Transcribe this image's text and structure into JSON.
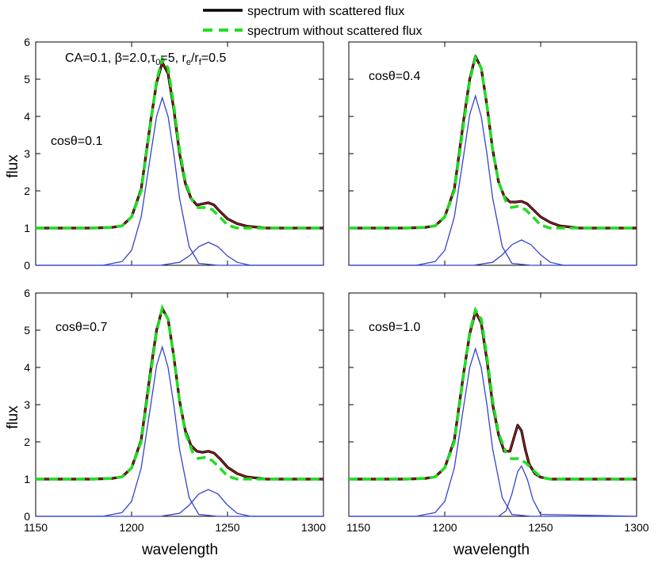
{
  "chart_data": {
    "type": "line",
    "legend": {
      "placement": "top",
      "entries": [
        {
          "label": "spectrum with scattered flux",
          "color": "#000000",
          "style": "solid"
        },
        {
          "label": "spectrum without scattered flux",
          "color": "#22dd22",
          "style": "dashed"
        }
      ]
    },
    "annotation_params": "CA=0.1, β=2.0,τ₀=5, rₑ/rᶠ=0.5",
    "annotation_parts": {
      "ca": "CA=0.1, ",
      "beta": "β=2.0,",
      "tau": "τ",
      "tau_sub": "0",
      "tau_val": "=5, r",
      "re_sub": "e",
      "rf_mid": "/r",
      "rf_sub": "f",
      "ratio": "=0.5"
    },
    "xlabel": "wavelength",
    "ylabel": "flux",
    "xlim": [
      1150,
      1300
    ],
    "ylim": [
      0,
      6
    ],
    "x_ticks": [
      1150,
      1200,
      1250,
      1300
    ],
    "y_ticks": [
      0,
      1,
      2,
      3,
      4,
      5,
      6
    ],
    "x_tick_labels": [
      "1150",
      "1200",
      "1250",
      "1300"
    ],
    "y_tick_labels": [
      "0",
      "1",
      "2",
      "3",
      "4",
      "5",
      "6"
    ],
    "colors": {
      "with_scattered": "#000000",
      "red_overlay": "#cc2222",
      "without_scattered": "#22dd22",
      "components": "#3344cc"
    },
    "panels": [
      {
        "label": "cosθ=0.1",
        "series": [
          {
            "name": "spectrum with scattered flux",
            "x": [
              1150,
              1180,
              1190,
              1195,
              1200,
              1205,
              1210,
              1213,
              1216,
              1219,
              1222,
              1225,
              1228,
              1231,
              1234,
              1237,
              1240,
              1243,
              1246,
              1250,
              1255,
              1260,
              1270,
              1300
            ],
            "y": [
              1.0,
              1.0,
              1.02,
              1.06,
              1.3,
              2.05,
              3.9,
              4.9,
              5.45,
              5.15,
              4.2,
              3.0,
              2.2,
              1.8,
              1.62,
              1.65,
              1.68,
              1.62,
              1.45,
              1.25,
              1.12,
              1.05,
              1.0,
              1.0
            ]
          },
          {
            "name": "spectrum without scattered flux",
            "x": [
              1150,
              1180,
              1190,
              1195,
              1200,
              1205,
              1210,
              1213,
              1216,
              1219,
              1222,
              1225,
              1228,
              1232
            ],
            "y": [
              1.0,
              1.0,
              1.02,
              1.06,
              1.3,
              2.0,
              3.85,
              4.95,
              5.55,
              5.3,
              4.3,
              3.1,
              2.25,
              1.7
            ],
            "x2": [
              1234,
              1238,
              1242,
              1246,
              1250,
              1255,
              1260,
              1270,
              1300
            ],
            "y2": [
              1.55,
              1.55,
              1.5,
              1.3,
              1.08,
              1.0,
              1.0,
              1.0,
              1.0
            ]
          },
          {
            "name": "component 1",
            "x": [
              1150,
              1185,
              1195,
              1200,
              1205,
              1210,
              1213,
              1216,
              1219,
              1222,
              1225,
              1230,
              1235,
              1245,
              1300
            ],
            "y": [
              0,
              0.0,
              0.1,
              0.4,
              1.3,
              3.0,
              4.0,
              4.5,
              4.0,
              3.0,
              1.8,
              0.5,
              0.05,
              0,
              0
            ]
          },
          {
            "name": "component 2",
            "x": [
              1150,
              1215,
              1225,
              1230,
              1235,
              1240,
              1245,
              1250,
              1255,
              1262,
              1300
            ],
            "y": [
              0,
              0,
              0.08,
              0.25,
              0.5,
              0.62,
              0.5,
              0.25,
              0.08,
              0.0,
              0
            ]
          }
        ]
      },
      {
        "label": "cosθ=0.4",
        "series": [
          {
            "name": "spectrum with scattered flux",
            "x": [
              1150,
              1180,
              1190,
              1195,
              1200,
              1205,
              1210,
              1213,
              1216,
              1219,
              1222,
              1225,
              1228,
              1231,
              1234,
              1237,
              1240,
              1243,
              1246,
              1250,
              1255,
              1260,
              1270,
              1300
            ],
            "y": [
              1.0,
              1.0,
              1.02,
              1.06,
              1.3,
              2.05,
              3.95,
              5.0,
              5.62,
              5.3,
              4.3,
              3.1,
              2.25,
              1.85,
              1.7,
              1.7,
              1.72,
              1.65,
              1.5,
              1.3,
              1.15,
              1.06,
              1.0,
              1.0
            ]
          },
          {
            "name": "spectrum without scattered flux",
            "x": [
              1150,
              1180,
              1190,
              1195,
              1200,
              1205,
              1210,
              1213,
              1216,
              1219,
              1222,
              1225,
              1228,
              1232
            ],
            "y": [
              1.0,
              1.0,
              1.02,
              1.06,
              1.3,
              2.0,
              3.85,
              4.95,
              5.58,
              5.3,
              4.3,
              3.1,
              2.25,
              1.7
            ],
            "x2": [
              1234,
              1238,
              1242,
              1246,
              1250,
              1255,
              1260,
              1270,
              1300
            ],
            "y2": [
              1.55,
              1.58,
              1.5,
              1.3,
              1.08,
              1.0,
              1.0,
              1.0,
              1.0
            ]
          },
          {
            "name": "component 1",
            "x": [
              1150,
              1185,
              1195,
              1200,
              1205,
              1210,
              1213,
              1216,
              1219,
              1222,
              1225,
              1230,
              1235,
              1245,
              1300
            ],
            "y": [
              0,
              0.0,
              0.1,
              0.4,
              1.3,
              3.0,
              4.05,
              4.55,
              4.0,
              3.0,
              1.8,
              0.5,
              0.05,
              0,
              0
            ]
          },
          {
            "name": "component 2",
            "x": [
              1150,
              1215,
              1225,
              1230,
              1235,
              1240,
              1245,
              1250,
              1255,
              1262,
              1300
            ],
            "y": [
              0,
              0,
              0.08,
              0.28,
              0.55,
              0.68,
              0.55,
              0.28,
              0.08,
              0.0,
              0
            ]
          }
        ]
      },
      {
        "label": "cosθ=0.7",
        "series": [
          {
            "name": "spectrum with scattered flux",
            "x": [
              1150,
              1180,
              1190,
              1195,
              1200,
              1205,
              1210,
              1213,
              1216,
              1219,
              1222,
              1225,
              1228,
              1231,
              1234,
              1237,
              1240,
              1243,
              1246,
              1250,
              1255,
              1260,
              1270,
              1300
            ],
            "y": [
              1.0,
              1.0,
              1.02,
              1.06,
              1.3,
              2.05,
              3.95,
              5.0,
              5.58,
              5.3,
              4.3,
              3.1,
              2.3,
              1.9,
              1.75,
              1.72,
              1.75,
              1.7,
              1.55,
              1.32,
              1.15,
              1.06,
              1.0,
              1.0
            ]
          },
          {
            "name": "spectrum without scattered flux",
            "x": [
              1150,
              1180,
              1190,
              1195,
              1200,
              1205,
              1210,
              1213,
              1216,
              1219,
              1222,
              1225,
              1228,
              1232
            ],
            "y": [
              1.0,
              1.0,
              1.02,
              1.06,
              1.3,
              2.0,
              3.85,
              4.95,
              5.6,
              5.3,
              4.3,
              3.1,
              2.25,
              1.7
            ],
            "x2": [
              1234,
              1238,
              1242,
              1246,
              1250,
              1255,
              1260,
              1270,
              1300
            ],
            "y2": [
              1.55,
              1.58,
              1.5,
              1.3,
              1.08,
              1.0,
              1.0,
              1.0,
              1.0
            ]
          },
          {
            "name": "component 1",
            "x": [
              1150,
              1185,
              1195,
              1200,
              1205,
              1210,
              1213,
              1216,
              1219,
              1222,
              1225,
              1230,
              1235,
              1245,
              1300
            ],
            "y": [
              0,
              0.0,
              0.1,
              0.4,
              1.3,
              3.0,
              4.05,
              4.55,
              4.0,
              3.0,
              1.8,
              0.5,
              0.05,
              0,
              0
            ]
          },
          {
            "name": "component 2",
            "x": [
              1150,
              1215,
              1225,
              1230,
              1235,
              1240,
              1245,
              1250,
              1255,
              1262,
              1300
            ],
            "y": [
              0,
              0,
              0.08,
              0.3,
              0.6,
              0.72,
              0.6,
              0.3,
              0.08,
              0.0,
              0
            ]
          }
        ]
      },
      {
        "label": "cosθ=1.0",
        "series": [
          {
            "name": "spectrum with scattered flux",
            "x": [
              1150,
              1180,
              1190,
              1195,
              1200,
              1205,
              1210,
              1213,
              1216,
              1219,
              1222,
              1225,
              1228,
              1231,
              1234,
              1236,
              1238,
              1240,
              1242,
              1244,
              1247,
              1250,
              1255,
              1260,
              1270,
              1300
            ],
            "y": [
              1.0,
              1.0,
              1.02,
              1.06,
              1.3,
              2.05,
              3.9,
              4.9,
              5.5,
              5.2,
              4.2,
              3.0,
              2.2,
              1.75,
              1.75,
              2.1,
              2.45,
              2.3,
              1.8,
              1.4,
              1.15,
              1.05,
              1.0,
              1.0,
              1.0,
              1.0
            ]
          },
          {
            "name": "spectrum without scattered flux",
            "x": [
              1150,
              1180,
              1190,
              1195,
              1200,
              1205,
              1210,
              1213,
              1216,
              1219,
              1222,
              1225,
              1228,
              1232
            ],
            "y": [
              1.0,
              1.0,
              1.02,
              1.06,
              1.3,
              2.0,
              3.85,
              4.95,
              5.55,
              5.3,
              4.3,
              3.1,
              2.25,
              1.7
            ],
            "x2": [
              1234,
              1238,
              1242,
              1246,
              1250,
              1255,
              1260,
              1270,
              1300
            ],
            "y2": [
              1.55,
              1.55,
              1.45,
              1.25,
              1.05,
              1.0,
              1.0,
              1.0,
              1.0
            ]
          },
          {
            "name": "component 1",
            "x": [
              1150,
              1185,
              1195,
              1200,
              1205,
              1210,
              1213,
              1216,
              1219,
              1222,
              1225,
              1230,
              1235,
              1245,
              1300
            ],
            "y": [
              0,
              0.0,
              0.1,
              0.4,
              1.3,
              3.0,
              4.0,
              4.5,
              4.0,
              3.0,
              1.8,
              0.5,
              0.05,
              0,
              0
            ]
          },
          {
            "name": "component 2",
            "x": [
              1150,
              1228,
              1232,
              1235,
              1238,
              1240,
              1243,
              1246,
              1250,
              1300
            ],
            "y": [
              0,
              0,
              0.15,
              0.6,
              1.2,
              1.35,
              1.0,
              0.45,
              0.05,
              0
            ]
          }
        ]
      }
    ]
  }
}
